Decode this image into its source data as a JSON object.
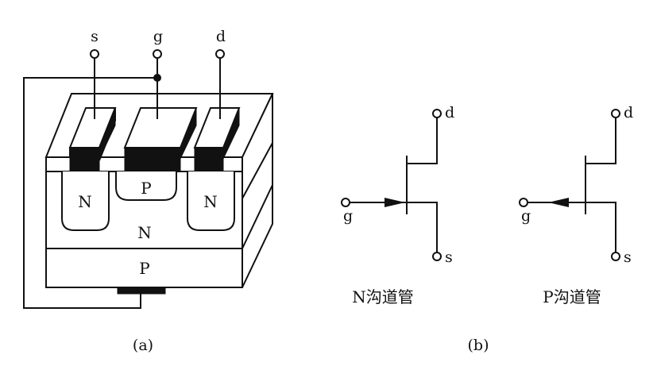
{
  "figure_a": {
    "terminals": {
      "source": "s",
      "gate": "g",
      "drain": "d"
    },
    "regions": {
      "left_well": "N",
      "gate_region": "P",
      "right_well": "N",
      "channel_layer": "N",
      "substrate": "P"
    },
    "caption": "(a)"
  },
  "figure_b": {
    "n_channel": {
      "drain": "d",
      "gate": "g",
      "source": "s",
      "title": "N沟道管"
    },
    "p_channel": {
      "drain": "d",
      "gate": "g",
      "source": "s",
      "title": "P沟道管"
    },
    "caption": "(b)"
  }
}
